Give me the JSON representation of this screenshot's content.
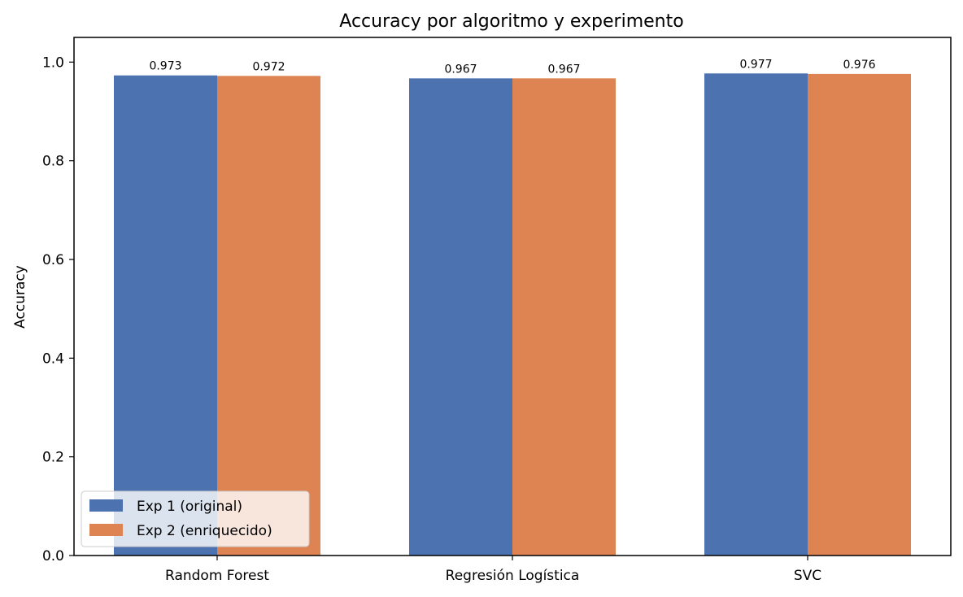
{
  "chart_data": {
    "type": "bar",
    "title": "Accuracy por algoritmo y experimento",
    "xlabel": "",
    "ylabel": "Accuracy",
    "categories": [
      "Random Forest",
      "Regresión Logística",
      "SVC"
    ],
    "series": [
      {
        "name": "Exp 1 (original)",
        "values": [
          0.973,
          0.967,
          0.977
        ],
        "color": "#4c72b0"
      },
      {
        "name": "Exp 2 (enriquecido)",
        "values": [
          0.972,
          0.967,
          0.976
        ],
        "color": "#dd8452"
      }
    ],
    "data_labels": [
      [
        "0.973",
        "0.967",
        "0.977"
      ],
      [
        "0.972",
        "0.967",
        "0.976"
      ]
    ],
    "ylim": [
      0,
      1.05
    ],
    "yticks": [
      "0.0",
      "0.2",
      "0.4",
      "0.6",
      "0.8",
      "1.0"
    ],
    "grid": false,
    "legend_position": "lower-left"
  }
}
